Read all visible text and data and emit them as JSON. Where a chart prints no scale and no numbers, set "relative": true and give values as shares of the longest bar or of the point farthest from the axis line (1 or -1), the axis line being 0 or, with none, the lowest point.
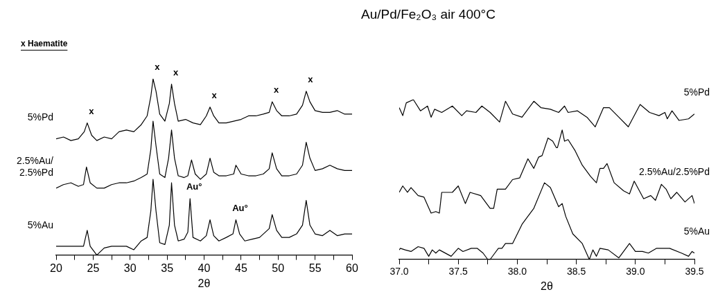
{
  "chart_data": [
    {
      "type": "line",
      "title": "Au/Pd/Fe₂O₃ air 400°C",
      "xlabel": "2θ",
      "relative": true,
      "xlim": [
        20,
        60
      ],
      "xticks": [
        20,
        {
          "value": 22.5,
          "label": null
        },
        25,
        {
          "value": 27.5,
          "label": null
        },
        30,
        {
          "value": 32.5,
          "label": null
        },
        35,
        {
          "value": 37.5,
          "label": null
        },
        40,
        {
          "value": 42.5,
          "label": null
        },
        45,
        {
          "value": 47.5,
          "label": null
        },
        50,
        {
          "value": 52.5,
          "label": null
        },
        55,
        {
          "value": 57.5,
          "label": null
        },
        60
      ],
      "annotations": [
        "x Haematite",
        {
          "text": "x",
          "x": 24.2,
          "y": 0.75
        },
        {
          "text": "x",
          "x": 33.1,
          "y": 1.0
        },
        {
          "text": "x",
          "x": 35.6,
          "y": 0.97
        },
        {
          "text": "x",
          "x": 40.8,
          "y": 0.84
        },
        {
          "text": "x",
          "x": 49.2,
          "y": 0.87
        },
        {
          "text": "x",
          "x": 53.8,
          "y": 0.93
        },
        {
          "text": "Au°",
          "x": 38.1,
          "y": 0.32
        },
        {
          "text": "Au°",
          "x": 44.3,
          "y": 0.2
        }
      ],
      "series": [
        {
          "name": "5%Pd",
          "color": "#000000",
          "x": [
            20,
            21,
            22,
            23,
            23.8,
            24.2,
            24.8,
            25.5,
            26.5,
            27.5,
            28.5,
            29.5,
            30.5,
            31.5,
            32.3,
            32.8,
            33.1,
            33.5,
            34,
            34.7,
            35.3,
            35.6,
            36,
            36.5,
            37.5,
            38.5,
            39.5,
            40.3,
            40.8,
            41.3,
            42,
            43,
            44,
            45,
            46,
            47,
            48,
            48.8,
            49.2,
            49.8,
            50.5,
            51.5,
            52.5,
            53.3,
            53.8,
            54.3,
            55,
            56,
            57,
            58,
            59,
            60
          ],
          "values": [
            0.66,
            0.67,
            0.65,
            0.66,
            0.7,
            0.75,
            0.68,
            0.65,
            0.67,
            0.66,
            0.7,
            0.71,
            0.7,
            0.74,
            0.79,
            0.9,
            1.0,
            0.93,
            0.8,
            0.76,
            0.86,
            0.97,
            0.86,
            0.76,
            0.77,
            0.75,
            0.74,
            0.79,
            0.84,
            0.79,
            0.75,
            0.75,
            0.76,
            0.77,
            0.79,
            0.79,
            0.8,
            0.81,
            0.87,
            0.82,
            0.79,
            0.79,
            0.8,
            0.85,
            0.93,
            0.87,
            0.82,
            0.81,
            0.81,
            0.82,
            0.8,
            0.8
          ]
        },
        {
          "name": "2.5%Au/\n2.5%Pd",
          "color": "#000000",
          "x": [
            20,
            21,
            22,
            23,
            23.7,
            24.1,
            24.6,
            25.5,
            26.5,
            27.5,
            28.5,
            29.5,
            30.5,
            31.5,
            32.3,
            32.8,
            33.1,
            33.5,
            34,
            34.7,
            35.2,
            35.6,
            36,
            36.5,
            37.3,
            37.8,
            38.3,
            38.8,
            39.5,
            40.3,
            40.8,
            41.3,
            42,
            43,
            44,
            44.3,
            45,
            46,
            47,
            48,
            48.8,
            49.2,
            49.8,
            50.5,
            51.5,
            52.5,
            53.3,
            53.8,
            54.3,
            55,
            56,
            57,
            58,
            59,
            60
          ],
          "values": [
            0.38,
            0.4,
            0.41,
            0.39,
            0.4,
            0.5,
            0.41,
            0.38,
            0.38,
            0.4,
            0.41,
            0.41,
            0.42,
            0.44,
            0.46,
            0.6,
            0.76,
            0.62,
            0.46,
            0.44,
            0.55,
            0.71,
            0.55,
            0.45,
            0.44,
            0.45,
            0.54,
            0.46,
            0.43,
            0.46,
            0.55,
            0.47,
            0.45,
            0.45,
            0.46,
            0.51,
            0.46,
            0.45,
            0.45,
            0.46,
            0.49,
            0.58,
            0.49,
            0.45,
            0.45,
            0.46,
            0.51,
            0.64,
            0.55,
            0.48,
            0.49,
            0.51,
            0.49,
            0.48,
            0.48
          ]
        },
        {
          "name": "5%Au",
          "color": "#000000",
          "x": [
            20,
            21,
            22,
            23,
            23.7,
            24.2,
            24.6,
            25.5,
            26.5,
            27.5,
            28.5,
            29.5,
            30.5,
            31.5,
            32.3,
            32.8,
            33.1,
            33.5,
            34,
            34.7,
            35.3,
            35.6,
            36,
            36.5,
            37.3,
            37.8,
            38.1,
            38.5,
            39.5,
            40.3,
            40.8,
            41.3,
            42,
            43,
            43.9,
            44.3,
            44.8,
            45.5,
            46.5,
            47.5,
            48.8,
            49.2,
            49.8,
            50.5,
            51.5,
            52.5,
            53.3,
            53.8,
            54.3,
            55,
            56,
            57,
            58,
            59,
            60
          ],
          "values": [
            0.05,
            0.05,
            0.05,
            0.05,
            0.05,
            0.14,
            0.05,
            0,
            0.04,
            0.05,
            0.05,
            0.05,
            0.03,
            0.08,
            0.1,
            0.25,
            0.43,
            0.25,
            0.07,
            0.06,
            0.17,
            0.41,
            0.17,
            0.08,
            0.09,
            0.13,
            0.32,
            0.1,
            0.08,
            0.11,
            0.2,
            0.11,
            0.08,
            0.1,
            0.12,
            0.2,
            0.12,
            0.08,
            0.09,
            0.1,
            0.15,
            0.23,
            0.14,
            0.1,
            0.1,
            0.12,
            0.17,
            0.31,
            0.17,
            0.12,
            0.11,
            0.14,
            0.11,
            0.12,
            0.12
          ]
        }
      ]
    },
    {
      "type": "line",
      "xlabel": "2θ",
      "relative": true,
      "xlim": [
        37,
        39.5
      ],
      "xticks": [
        {
          "value": 37,
          "label": "37.0"
        },
        {
          "value": 37.25,
          "label": null
        },
        {
          "value": 37.5,
          "label": "37.5"
        },
        {
          "value": 37.75,
          "label": null
        },
        {
          "value": 38,
          "label": "38.0"
        },
        {
          "value": 38.25,
          "label": null
        },
        {
          "value": 38.5,
          "label": "38.5"
        },
        {
          "value": 38.75,
          "label": null
        },
        {
          "value": 39,
          "label": "39.0"
        },
        {
          "value": 39.25,
          "label": null
        },
        {
          "value": 39.5,
          "label": "39.5"
        }
      ],
      "series": [
        {
          "name": "5%Pd",
          "color": "#000000",
          "x": [
            37.0,
            37.03,
            37.06,
            37.12,
            37.18,
            37.24,
            37.27,
            37.3,
            37.36,
            37.45,
            37.53,
            37.57,
            37.65,
            37.7,
            37.77,
            37.85,
            37.9,
            37.96,
            38.04,
            38.14,
            38.2,
            38.28,
            38.35,
            38.4,
            38.43,
            38.51,
            38.59,
            38.66,
            38.73,
            38.78,
            38.86,
            38.94,
            39.04,
            39.12,
            39.2,
            39.25,
            39.27,
            39.31,
            39.37,
            39.45,
            39.5
          ],
          "values": [
            0.95,
            0.9,
            0.98,
            1.0,
            0.93,
            0.96,
            0.89,
            0.94,
            0.92,
            0.96,
            0.9,
            0.93,
            0.92,
            0.96,
            0.92,
            0.86,
            0.99,
            0.91,
            0.89,
            0.99,
            0.95,
            0.94,
            0.92,
            0.96,
            0.92,
            0.93,
            0.89,
            0.83,
            0.95,
            0.95,
            0.89,
            0.83,
            0.97,
            0.92,
            0.9,
            0.92,
            0.88,
            0.93,
            0.87,
            0.88,
            0.91
          ]
        },
        {
          "name": "2.5%Au/2.5%Pd",
          "color": "#000000",
          "x": [
            37.0,
            37.03,
            37.07,
            37.1,
            37.16,
            37.21,
            37.27,
            37.31,
            37.34,
            37.36,
            37.45,
            37.5,
            37.56,
            37.6,
            37.69,
            37.77,
            37.8,
            37.83,
            37.9,
            37.96,
            38.02,
            38.09,
            38.14,
            38.18,
            38.21,
            38.26,
            38.3,
            38.33,
            38.34,
            38.38,
            38.4,
            38.43,
            38.49,
            38.55,
            38.62,
            38.67,
            38.7,
            38.73,
            38.76,
            38.82,
            38.9,
            38.95,
            38.99,
            39.07,
            39.13,
            39.17,
            39.22,
            39.26,
            39.3,
            39.35,
            39.42,
            39.48,
            39.5
          ],
          "values": [
            0.42,
            0.46,
            0.42,
            0.45,
            0.4,
            0.39,
            0.29,
            0.3,
            0.29,
            0.42,
            0.42,
            0.46,
            0.35,
            0.42,
            0.4,
            0.32,
            0.32,
            0.44,
            0.44,
            0.5,
            0.51,
            0.63,
            0.57,
            0.64,
            0.65,
            0.76,
            0.74,
            0.7,
            0.7,
            0.81,
            0.74,
            0.75,
            0.68,
            0.59,
            0.52,
            0.48,
            0.57,
            0.57,
            0.6,
            0.48,
            0.43,
            0.41,
            0.49,
            0.38,
            0.4,
            0.37,
            0.47,
            0.44,
            0.38,
            0.42,
            0.36,
            0.4,
            0.35
          ]
        },
        {
          "name": "5%Au",
          "color": "#000000",
          "x": [
            37.0,
            37.01,
            37.05,
            37.1,
            37.16,
            37.21,
            37.25,
            37.28,
            37.31,
            37.34,
            37.44,
            37.5,
            37.54,
            37.61,
            37.66,
            37.71,
            37.75,
            37.77,
            37.81,
            37.84,
            37.87,
            37.9,
            37.96,
            38.04,
            38.14,
            38.23,
            38.28,
            38.35,
            38.38,
            38.41,
            38.47,
            38.55,
            38.61,
            38.64,
            38.67,
            38.7,
            38.77,
            38.86,
            38.95,
            39.0,
            39.06,
            39.11,
            39.18,
            39.29,
            39.39,
            39.45,
            39.48,
            39.5
          ],
          "values": [
            0.06,
            0.07,
            0.06,
            0.05,
            0.08,
            0.07,
            0.02,
            0.06,
            0.04,
            0.06,
            0.02,
            0.07,
            0.05,
            0.07,
            0.07,
            0.04,
            0,
            0,
            0.04,
            0.07,
            0.07,
            0.1,
            0.1,
            0.22,
            0.32,
            0.48,
            0.45,
            0.33,
            0.35,
            0.27,
            0.16,
            0.1,
            0,
            0.06,
            0.02,
            0.07,
            0.06,
            0.01,
            0.1,
            0.05,
            0.05,
            0.04,
            0.07,
            0.07,
            0.04,
            0.02,
            0.05,
            0.04
          ]
        }
      ]
    }
  ]
}
